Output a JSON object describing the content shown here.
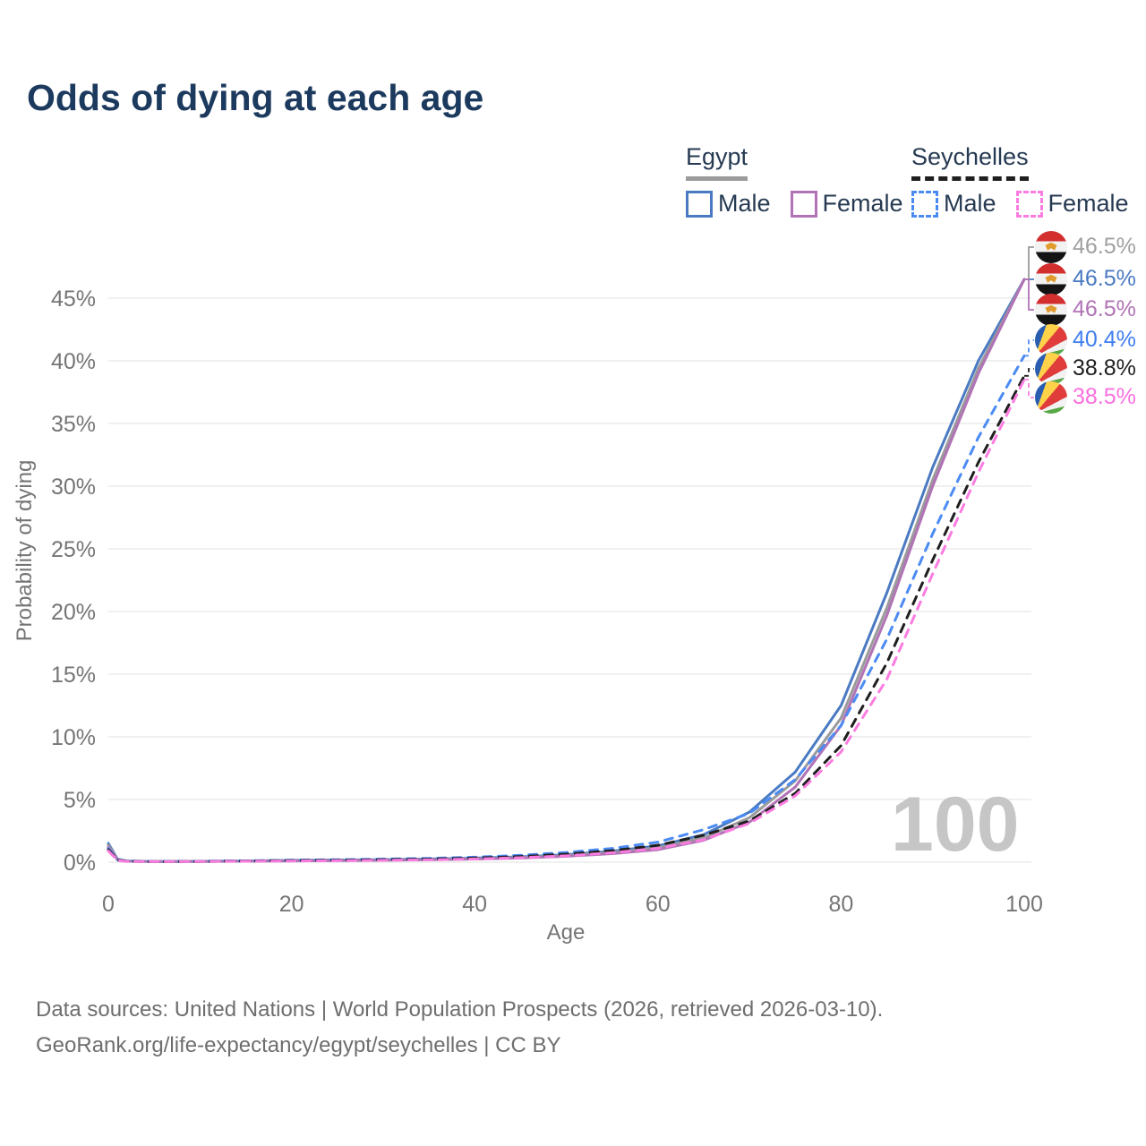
{
  "title": "Odds of dying at each age",
  "watermark": "100",
  "legend": {
    "groups": [
      {
        "country": "Egypt",
        "line_style": "solid",
        "underline_color": "#9b9b9b",
        "items": [
          {
            "label": "Male",
            "color": "#4a7ac2",
            "dashed": false
          },
          {
            "label": "Female",
            "color": "#b173b6",
            "dashed": false
          }
        ]
      },
      {
        "country": "Seychelles",
        "line_style": "dashed",
        "underline_color": "#1f1f1f",
        "items": [
          {
            "label": "Male",
            "color": "#4b8bf4",
            "dashed": true
          },
          {
            "label": "Female",
            "color": "#fb7ce0",
            "dashed": true
          }
        ]
      }
    ]
  },
  "footer": {
    "line1": "Data sources: United Nations | World Population Prospects (2026, retrieved 2026-03-10).",
    "line2": "GeoRank.org/life-expectancy/egypt/seychelles | CC BY"
  },
  "chart_data": {
    "type": "line",
    "title": "Odds of dying at each age",
    "xlabel": "Age",
    "ylabel": "Probability of dying",
    "xlim": [
      0,
      100
    ],
    "ylim": [
      0,
      47
    ],
    "grid": "horizontal",
    "x_ticks": [
      0,
      20,
      40,
      60,
      80,
      100
    ],
    "y_tick_values": [
      0,
      5,
      10,
      15,
      20,
      25,
      30,
      35,
      40,
      45
    ],
    "y_tick_labels": [
      "0%",
      "5%",
      "10%",
      "15%",
      "20%",
      "25%",
      "30%",
      "35%",
      "40%",
      "45%"
    ],
    "ages": [
      0,
      1,
      2,
      5,
      10,
      15,
      20,
      25,
      30,
      35,
      40,
      45,
      50,
      55,
      60,
      65,
      70,
      75,
      80,
      85,
      90,
      95,
      100
    ],
    "series": [
      {
        "name": "Egypt Male",
        "country": "Egypt",
        "sex": "Male",
        "color": "#4a7ac2",
        "dashed": false,
        "flag": "egypt",
        "end_label": "46.5%",
        "label_color": "#4a7ac2",
        "label_slot": 1,
        "values": [
          1.5,
          0.25,
          0.1,
          0.06,
          0.07,
          0.1,
          0.15,
          0.18,
          0.21,
          0.26,
          0.33,
          0.43,
          0.6,
          0.87,
          1.3,
          2.2,
          4.0,
          7.2,
          12.5,
          21.5,
          31.5,
          40.0,
          46.5
        ]
      },
      {
        "name": "Egypt Both sexes",
        "country": "Egypt",
        "sex": "Both",
        "color": "#9b9b9b",
        "dashed": false,
        "flag": "egypt",
        "end_label": "46.5%",
        "label_color": "#a0a0a0",
        "label_slot": 0,
        "values": [
          1.35,
          0.22,
          0.09,
          0.055,
          0.065,
          0.09,
          0.12,
          0.15,
          0.18,
          0.22,
          0.28,
          0.38,
          0.53,
          0.77,
          1.15,
          1.95,
          3.55,
          6.5,
          11.5,
          20.3,
          30.5,
          39.4,
          46.5
        ]
      },
      {
        "name": "Egypt Female",
        "country": "Egypt",
        "sex": "Female",
        "color": "#b173b6",
        "dashed": false,
        "flag": "egypt",
        "end_label": "46.5%",
        "label_color": "#b173b6",
        "label_slot": 2,
        "values": [
          1.2,
          0.2,
          0.08,
          0.05,
          0.06,
          0.08,
          0.1,
          0.12,
          0.15,
          0.19,
          0.25,
          0.33,
          0.47,
          0.68,
          1.0,
          1.75,
          3.2,
          6.0,
          10.9,
          19.7,
          30.0,
          39.0,
          46.5
        ]
      },
      {
        "name": "Seychelles Male",
        "country": "Seychelles",
        "sex": "Male",
        "color": "#4b8bf4",
        "dashed": true,
        "flag": "seychelles",
        "end_label": "40.4%",
        "label_color": "#3f7ef0",
        "label_slot": 3,
        "values": [
          1.1,
          0.18,
          0.08,
          0.05,
          0.07,
          0.11,
          0.16,
          0.2,
          0.25,
          0.31,
          0.4,
          0.55,
          0.78,
          1.1,
          1.6,
          2.6,
          3.9,
          6.6,
          10.9,
          17.8,
          26.2,
          33.9,
          40.4
        ]
      },
      {
        "name": "Seychelles Both sexes",
        "country": "Seychelles",
        "sex": "Both",
        "color": "#1f1f1f",
        "dashed": true,
        "flag": "seychelles",
        "end_label": "38.8%",
        "label_color": "#1f1f1f",
        "label_slot": 4,
        "values": [
          1.0,
          0.16,
          0.07,
          0.045,
          0.06,
          0.09,
          0.13,
          0.16,
          0.2,
          0.25,
          0.33,
          0.45,
          0.64,
          0.92,
          1.35,
          2.15,
          3.3,
          5.5,
          9.3,
          15.9,
          24.1,
          31.9,
          38.8
        ]
      },
      {
        "name": "Seychelles Female",
        "country": "Seychelles",
        "sex": "Female",
        "color": "#fb7ce0",
        "dashed": true,
        "flag": "seychelles",
        "end_label": "38.5%",
        "label_color": "#fb6fdf",
        "label_slot": 5,
        "values": [
          0.9,
          0.14,
          0.06,
          0.04,
          0.05,
          0.07,
          0.09,
          0.12,
          0.15,
          0.19,
          0.26,
          0.36,
          0.51,
          0.75,
          1.1,
          1.8,
          3.1,
          5.3,
          8.8,
          14.6,
          23.0,
          31.1,
          38.5
        ]
      }
    ]
  }
}
